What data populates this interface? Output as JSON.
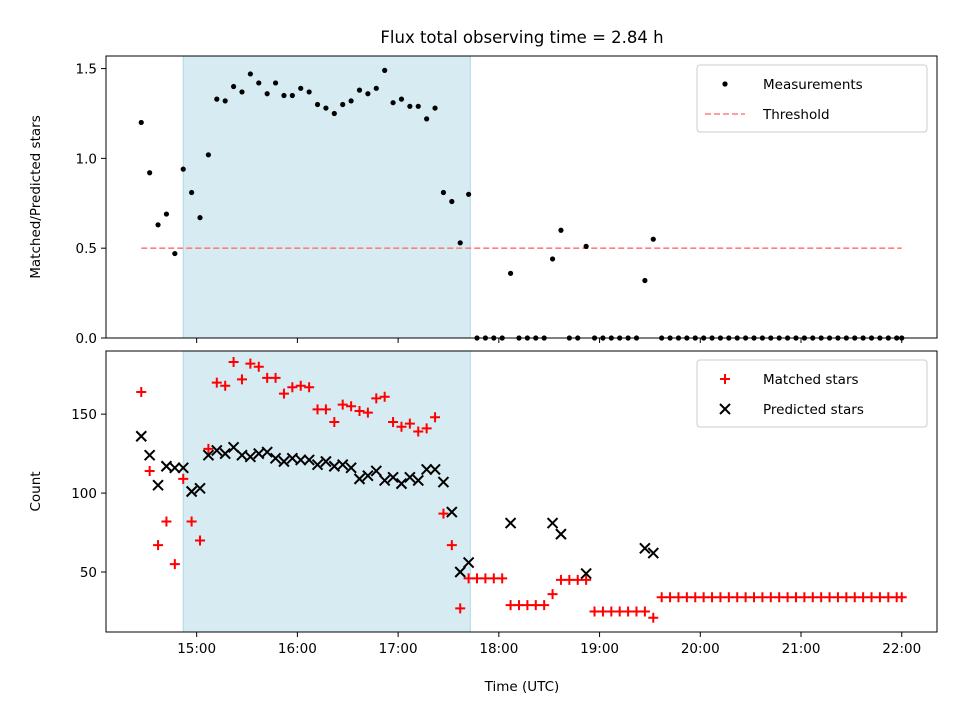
{
  "chart_data": {
    "title": "Flux total observing time = 2.84 h",
    "xlabel": "Time (UTC)",
    "x_ticks": [
      "15:00",
      "16:00",
      "17:00",
      "18:00",
      "19:00",
      "20:00",
      "21:00",
      "22:00"
    ],
    "x_range": [
      "14:06",
      "22:21"
    ],
    "observing_window": [
      "14:52",
      "17:43"
    ],
    "observing_window_color": "#add8e6",
    "panels": [
      {
        "type": "scatter",
        "ylabel": "Matched/Predicted stars",
        "ylim": [
          0,
          1.57
        ],
        "y_ticks": [
          0.0,
          0.5,
          1.0,
          1.5
        ],
        "legend_position": "top-right",
        "legend": [
          {
            "name": "Measurements",
            "marker": "dot",
            "color": "#000000"
          },
          {
            "name": "Threshold",
            "marker": "dashed-line",
            "color": "#ff7f7f"
          }
        ],
        "threshold": {
          "value": 0.5,
          "x_start": "14:27",
          "x_end": "22:00"
        },
        "series": [
          {
            "name": "Measurements",
            "color": "#000000",
            "points": [
              [
                "14:27",
                1.2
              ],
              [
                "14:32",
                0.92
              ],
              [
                "14:37",
                0.63
              ],
              [
                "14:42",
                0.69
              ],
              [
                "14:47",
                0.47
              ],
              [
                "14:52",
                0.94
              ],
              [
                "14:57",
                0.81
              ],
              [
                "15:02",
                0.67
              ],
              [
                "15:07",
                1.02
              ],
              [
                "15:12",
                1.33
              ],
              [
                "15:17",
                1.32
              ],
              [
                "15:22",
                1.4
              ],
              [
                "15:27",
                1.37
              ],
              [
                "15:32",
                1.47
              ],
              [
                "15:37",
                1.42
              ],
              [
                "15:42",
                1.36
              ],
              [
                "15:47",
                1.42
              ],
              [
                "15:52",
                1.35
              ],
              [
                "15:57",
                1.35
              ],
              [
                "16:02",
                1.39
              ],
              [
                "16:07",
                1.37
              ],
              [
                "16:12",
                1.3
              ],
              [
                "16:17",
                1.28
              ],
              [
                "16:22",
                1.25
              ],
              [
                "16:27",
                1.3
              ],
              [
                "16:32",
                1.32
              ],
              [
                "16:37",
                1.38
              ],
              [
                "16:42",
                1.36
              ],
              [
                "16:47",
                1.39
              ],
              [
                "16:52",
                1.49
              ],
              [
                "16:57",
                1.31
              ],
              [
                "17:02",
                1.33
              ],
              [
                "17:07",
                1.29
              ],
              [
                "17:12",
                1.29
              ],
              [
                "17:17",
                1.22
              ],
              [
                "17:22",
                1.28
              ],
              [
                "17:27",
                0.81
              ],
              [
                "17:32",
                0.76
              ],
              [
                "17:37",
                0.53
              ],
              [
                "17:42",
                0.8
              ],
              [
                "17:47",
                0
              ],
              [
                "17:52",
                0
              ],
              [
                "17:57",
                0
              ],
              [
                "18:02",
                0
              ],
              [
                "18:07",
                0.36
              ],
              [
                "18:12",
                0
              ],
              [
                "18:17",
                0
              ],
              [
                "18:22",
                0
              ],
              [
                "18:27",
                0
              ],
              [
                "18:32",
                0.44
              ],
              [
                "18:37",
                0.6
              ],
              [
                "18:42",
                0
              ],
              [
                "18:47",
                0
              ],
              [
                "18:52",
                0.51
              ],
              [
                "18:57",
                0
              ],
              [
                "19:02",
                0
              ],
              [
                "19:07",
                0
              ],
              [
                "19:12",
                0
              ],
              [
                "19:17",
                0
              ],
              [
                "19:22",
                0
              ],
              [
                "19:27",
                0.32
              ],
              [
                "19:32",
                0.55
              ],
              [
                "19:37",
                0
              ],
              [
                "19:42",
                0
              ],
              [
                "19:47",
                0
              ],
              [
                "19:52",
                0
              ],
              [
                "19:57",
                0
              ],
              [
                "20:02",
                0
              ],
              [
                "20:07",
                0
              ],
              [
                "20:12",
                0
              ],
              [
                "20:17",
                0
              ],
              [
                "20:22",
                0
              ],
              [
                "20:27",
                0
              ],
              [
                "20:32",
                0
              ],
              [
                "20:37",
                0
              ],
              [
                "20:42",
                0
              ],
              [
                "20:47",
                0
              ],
              [
                "20:52",
                0
              ],
              [
                "20:57",
                0
              ],
              [
                "21:02",
                0
              ],
              [
                "21:07",
                0
              ],
              [
                "21:12",
                0
              ],
              [
                "21:17",
                0
              ],
              [
                "21:22",
                0
              ],
              [
                "21:27",
                0
              ],
              [
                "21:32",
                0
              ],
              [
                "21:37",
                0
              ],
              [
                "21:42",
                0
              ],
              [
                "21:47",
                0
              ],
              [
                "21:52",
                0
              ],
              [
                "21:57",
                0
              ],
              [
                "22:00",
                0
              ]
            ]
          }
        ]
      },
      {
        "type": "scatter",
        "ylabel": "Count",
        "ylim": [
          12,
          190
        ],
        "y_ticks": [
          50,
          100,
          150
        ],
        "legend_position": "top-right",
        "legend": [
          {
            "name": "Matched stars",
            "marker": "plus",
            "color": "#ff0000"
          },
          {
            "name": "Predicted stars",
            "marker": "x",
            "color": "#000000"
          }
        ],
        "series": [
          {
            "name": "Matched stars",
            "color": "#ff0000",
            "marker": "plus",
            "points": [
              [
                "14:27",
                164
              ],
              [
                "14:32",
                114
              ],
              [
                "14:37",
                67
              ],
              [
                "14:42",
                82
              ],
              [
                "14:47",
                55
              ],
              [
                "14:52",
                109
              ],
              [
                "14:57",
                82
              ],
              [
                "15:02",
                70
              ],
              [
                "15:07",
                128
              ],
              [
                "15:12",
                170
              ],
              [
                "15:17",
                168
              ],
              [
                "15:22",
                183
              ],
              [
                "15:27",
                172
              ],
              [
                "15:32",
                182
              ],
              [
                "15:37",
                180
              ],
              [
                "15:42",
                173
              ],
              [
                "15:47",
                173
              ],
              [
                "15:52",
                163
              ],
              [
                "15:57",
                167
              ],
              [
                "16:02",
                168
              ],
              [
                "16:07",
                167
              ],
              [
                "16:12",
                153
              ],
              [
                "16:17",
                153
              ],
              [
                "16:22",
                145
              ],
              [
                "16:27",
                156
              ],
              [
                "16:32",
                155
              ],
              [
                "16:37",
                152
              ],
              [
                "16:42",
                151
              ],
              [
                "16:47",
                160
              ],
              [
                "16:52",
                161
              ],
              [
                "16:57",
                145
              ],
              [
                "17:02",
                142
              ],
              [
                "17:07",
                144
              ],
              [
                "17:12",
                139
              ],
              [
                "17:17",
                141
              ],
              [
                "17:22",
                148
              ],
              [
                "17:27",
                87
              ],
              [
                "17:32",
                67
              ],
              [
                "17:37",
                27
              ],
              [
                "17:42",
                46
              ],
              [
                "17:47",
                46
              ],
              [
                "17:52",
                46
              ],
              [
                "17:57",
                46
              ],
              [
                "18:02",
                46
              ],
              [
                "18:07",
                29
              ],
              [
                "18:12",
                29
              ],
              [
                "18:17",
                29
              ],
              [
                "18:22",
                29
              ],
              [
                "18:27",
                29
              ],
              [
                "18:32",
                36
              ],
              [
                "18:37",
                45
              ],
              [
                "18:42",
                45
              ],
              [
                "18:47",
                45
              ],
              [
                "18:52",
                45
              ],
              [
                "18:57",
                25
              ],
              [
                "19:02",
                25
              ],
              [
                "19:07",
                25
              ],
              [
                "19:12",
                25
              ],
              [
                "19:17",
                25
              ],
              [
                "19:22",
                25
              ],
              [
                "19:27",
                25
              ],
              [
                "19:32",
                21
              ],
              [
                "19:37",
                34
              ],
              [
                "19:42",
                34
              ],
              [
                "19:47",
                34
              ],
              [
                "19:52",
                34
              ],
              [
                "19:57",
                34
              ],
              [
                "20:02",
                34
              ],
              [
                "20:07",
                34
              ],
              [
                "20:12",
                34
              ],
              [
                "20:17",
                34
              ],
              [
                "20:22",
                34
              ],
              [
                "20:27",
                34
              ],
              [
                "20:32",
                34
              ],
              [
                "20:37",
                34
              ],
              [
                "20:42",
                34
              ],
              [
                "20:47",
                34
              ],
              [
                "20:52",
                34
              ],
              [
                "20:57",
                34
              ],
              [
                "21:02",
                34
              ],
              [
                "21:07",
                34
              ],
              [
                "21:12",
                34
              ],
              [
                "21:17",
                34
              ],
              [
                "21:22",
                34
              ],
              [
                "21:27",
                34
              ],
              [
                "21:32",
                34
              ],
              [
                "21:37",
                34
              ],
              [
                "21:42",
                34
              ],
              [
                "21:47",
                34
              ],
              [
                "21:52",
                34
              ],
              [
                "21:57",
                34
              ],
              [
                "22:00",
                34
              ]
            ]
          },
          {
            "name": "Predicted stars",
            "color": "#000000",
            "marker": "x",
            "points": [
              [
                "14:27",
                136
              ],
              [
                "14:32",
                124
              ],
              [
                "14:37",
                105
              ],
              [
                "14:42",
                117
              ],
              [
                "14:47",
                116
              ],
              [
                "14:52",
                116
              ],
              [
                "14:57",
                101
              ],
              [
                "15:02",
                103
              ],
              [
                "15:07",
                124
              ],
              [
                "15:12",
                127
              ],
              [
                "15:17",
                125
              ],
              [
                "15:22",
                129
              ],
              [
                "15:27",
                124
              ],
              [
                "15:32",
                123
              ],
              [
                "15:37",
                125
              ],
              [
                "15:42",
                126
              ],
              [
                "15:47",
                122
              ],
              [
                "15:52",
                120
              ],
              [
                "15:57",
                122
              ],
              [
                "16:02",
                121
              ],
              [
                "16:07",
                121
              ],
              [
                "16:12",
                118
              ],
              [
                "16:17",
                120
              ],
              [
                "16:22",
                117
              ],
              [
                "16:27",
                118
              ],
              [
                "16:32",
                116
              ],
              [
                "16:37",
                109
              ],
              [
                "16:42",
                111
              ],
              [
                "16:47",
                114
              ],
              [
                "16:52",
                108
              ],
              [
                "16:57",
                110
              ],
              [
                "17:02",
                106
              ],
              [
                "17:07",
                110
              ],
              [
                "17:12",
                108
              ],
              [
                "17:17",
                115
              ],
              [
                "17:22",
                115
              ],
              [
                "17:27",
                107
              ],
              [
                "17:32",
                88
              ],
              [
                "17:37",
                50
              ],
              [
                "17:42",
                56
              ],
              [
                "18:07",
                81
              ],
              [
                "18:32",
                81
              ],
              [
                "18:37",
                74
              ],
              [
                "18:52",
                49
              ],
              [
                "19:27",
                65
              ],
              [
                "19:32",
                62
              ]
            ]
          }
        ]
      }
    ]
  }
}
